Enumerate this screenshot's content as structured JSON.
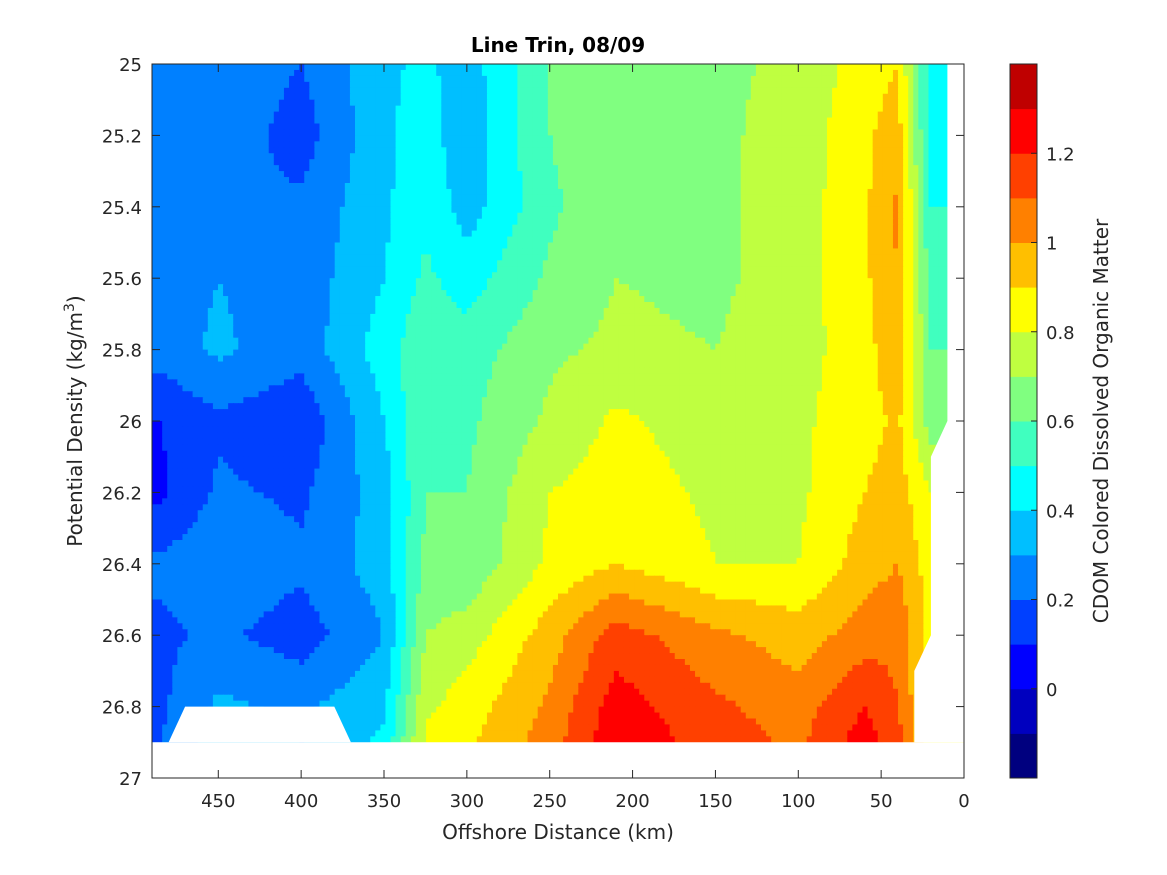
{
  "chart_data": {
    "type": "contour",
    "title": "Line Trin, 08/09",
    "xlabel": "Offshore Distance (km)",
    "ylabel_main": "Potential Density (kg/m",
    "ylabel_sup": "3",
    "ylabel_close": ")",
    "colorbar_label": "CDOM Colored Dissolved Organic Matter",
    "xlim": [
      490,
      0
    ],
    "x_reversed": true,
    "ylim": [
      25,
      27
    ],
    "y_reversed": true,
    "x_ticks": [
      450,
      400,
      350,
      300,
      250,
      200,
      150,
      100,
      50,
      0
    ],
    "y_ticks": [
      25,
      25.2,
      25.4,
      25.6,
      25.8,
      26,
      26.2,
      26.4,
      26.6,
      26.8,
      27
    ],
    "y_tick_labels": [
      "25",
      "25.2",
      "25.4",
      "25.6",
      "25.8",
      "26",
      "26.2",
      "26.4",
      "26.6",
      "26.8",
      "27"
    ],
    "colorbar_range": [
      -0.2,
      1.4
    ],
    "colorbar_ticks": [
      0,
      0.2,
      0.4,
      0.6,
      0.8,
      1,
      1.2
    ],
    "colorbar_tick_labels": [
      "0",
      "0.2",
      "0.4",
      "0.6",
      "0.8",
      "1",
      "1.2"
    ],
    "levels": [
      -0.2,
      -0.1,
      0,
      0.1,
      0.2,
      0.3,
      0.4,
      0.5,
      0.6,
      0.7,
      0.8,
      0.9,
      1.0,
      1.1,
      1.2,
      1.3,
      1.4
    ],
    "colormap": [
      "#00007f",
      "#0000bf",
      "#0000ff",
      "#0040ff",
      "#0080ff",
      "#00bfff",
      "#00ffff",
      "#40ffbf",
      "#80ff80",
      "#bfff40",
      "#ffff00",
      "#ffbf00",
      "#ff8000",
      "#ff4000",
      "#ff0000",
      "#bf0000"
    ],
    "grid": false,
    "distance_km": [
      485,
      450,
      400,
      350,
      325,
      300,
      250,
      210,
      150,
      100,
      60,
      40,
      20
    ],
    "density_levels": [
      25.0,
      25.2,
      25.4,
      25.6,
      25.8,
      26.0,
      26.2,
      26.4,
      26.6,
      26.8,
      26.9
    ],
    "cdom_grid": [
      [
        0.3,
        0.28,
        0.2,
        0.38,
        0.42,
        0.35,
        0.6,
        0.68,
        0.68,
        0.72,
        0.85,
        0.9,
        0.45
      ],
      [
        0.28,
        0.27,
        0.15,
        0.38,
        0.45,
        0.33,
        0.6,
        0.68,
        0.68,
        0.74,
        0.88,
        0.95,
        0.45
      ],
      [
        0.25,
        0.22,
        0.22,
        0.38,
        0.48,
        0.35,
        0.58,
        0.68,
        0.68,
        0.75,
        0.88,
        1.02,
        0.5
      ],
      [
        0.25,
        0.3,
        0.24,
        0.4,
        0.52,
        0.45,
        0.62,
        0.7,
        0.68,
        0.75,
        0.88,
        1.0,
        0.55
      ],
      [
        0.25,
        0.32,
        0.24,
        0.45,
        0.58,
        0.55,
        0.68,
        0.72,
        0.7,
        0.76,
        0.86,
        0.98,
        0.6
      ],
      [
        0.1,
        0.18,
        0.12,
        0.4,
        0.6,
        0.58,
        0.72,
        0.82,
        0.75,
        0.78,
        0.86,
        0.92,
        0.65
      ],
      [
        0.08,
        0.22,
        0.18,
        0.35,
        0.6,
        0.6,
        0.8,
        0.85,
        0.78,
        0.78,
        0.9,
        0.95,
        0.8
      ],
      [
        0.22,
        0.28,
        0.22,
        0.35,
        0.62,
        0.62,
        0.82,
        0.9,
        0.8,
        0.8,
        0.95,
        1.0,
        0.85
      ],
      [
        0.18,
        0.22,
        0.15,
        0.3,
        0.7,
        0.75,
        0.95,
        1.15,
        1.02,
        0.95,
        1.05,
        1.08,
        0.85
      ],
      [
        0.18,
        0.32,
        0.28,
        0.38,
        0.78,
        0.85,
        1.02,
        1.25,
        1.12,
        1.05,
        1.2,
        1.1,
        0.85
      ],
      [
        0.2,
        0.35,
        0.3,
        0.42,
        0.82,
        0.88,
        1.05,
        1.28,
        1.15,
        1.08,
        1.25,
        1.15,
        0.85
      ]
    ],
    "masked_regions": [
      {
        "name": "bottom-left-gap",
        "points_km_density": [
          [
            480,
            26.9
          ],
          [
            470,
            26.8
          ],
          [
            380,
            26.8
          ],
          [
            370,
            26.9
          ]
        ]
      },
      {
        "name": "bottom-strip",
        "points_km_density": [
          [
            490,
            26.9
          ],
          [
            0,
            26.9
          ],
          [
            0,
            27
          ],
          [
            490,
            27
          ]
        ]
      },
      {
        "name": "right-edge",
        "points_km_density": [
          [
            30,
            26.9
          ],
          [
            30,
            26.7
          ],
          [
            20,
            26.6
          ],
          [
            20,
            26.1
          ],
          [
            10,
            26.0
          ],
          [
            10,
            25.0
          ],
          [
            0,
            25.0
          ],
          [
            0,
            26.9
          ]
        ]
      }
    ]
  }
}
